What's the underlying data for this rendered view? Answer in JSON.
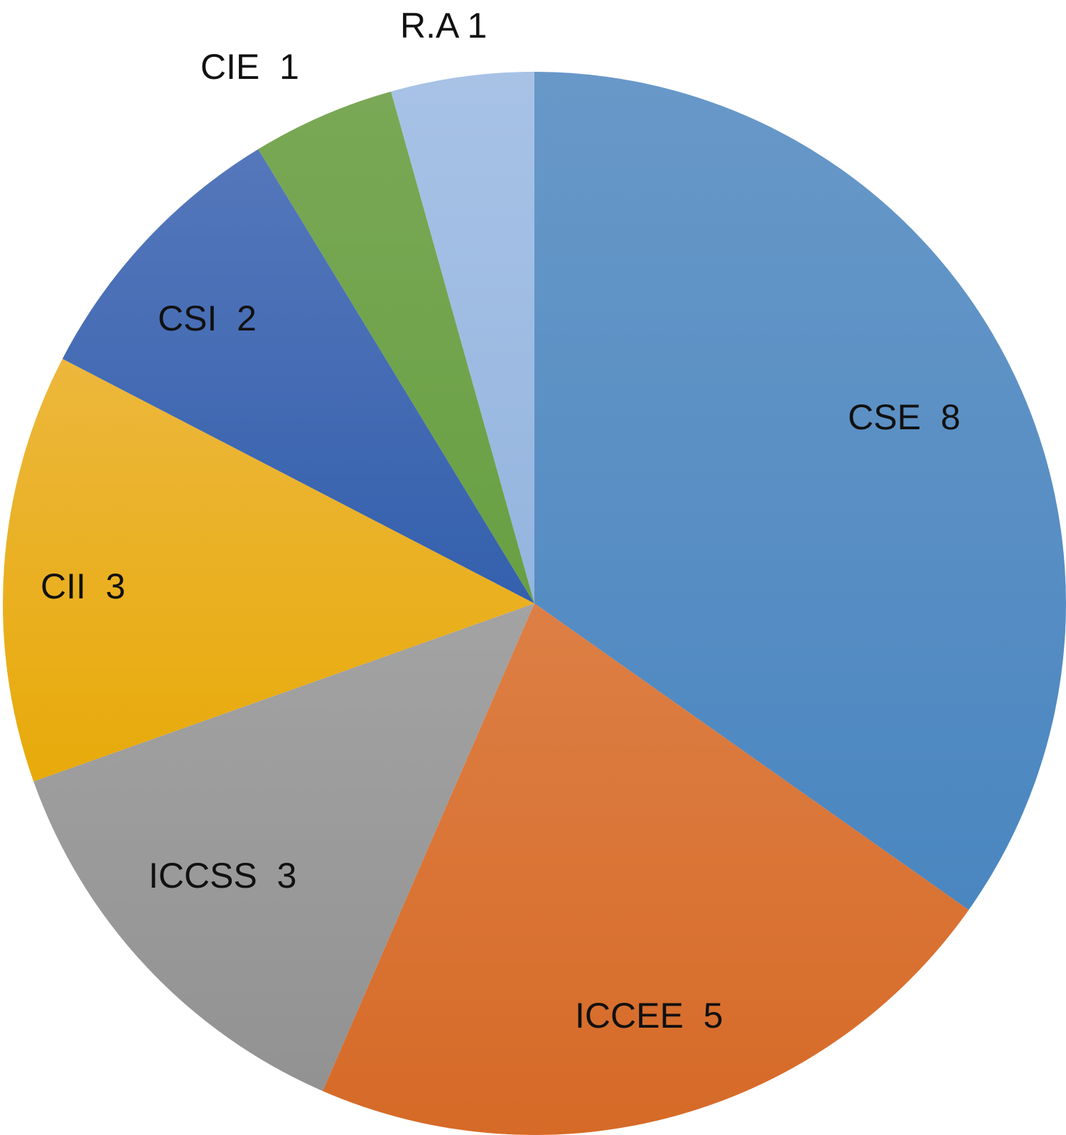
{
  "chart_data": {
    "type": "pie",
    "title": "",
    "start": "12 o'clock",
    "direction": "clockwise",
    "legend": "none",
    "slices": [
      {
        "label": "CSE",
        "value": 8,
        "data_label": "CSE  8",
        "color": "#4a86c0",
        "color_light": "#6898c8"
      },
      {
        "label": "ICCEE",
        "value": 5,
        "data_label": "ICCEE  5",
        "color": "#d66a27",
        "color_light": "#dd7f45"
      },
      {
        "label": "ICCSS",
        "value": 3,
        "data_label": "ICCSS  3",
        "color": "#929292",
        "color_light": "#a3a3a3"
      },
      {
        "label": "CII",
        "value": 3,
        "data_label": "CII  3",
        "color": "#e8aa0a",
        "color_light": "#ecb73c"
      },
      {
        "label": "CSI",
        "value": 2,
        "data_label": "CSI  2",
        "color": "#3460ad",
        "color_light": "#5577bb"
      },
      {
        "label": "CIE",
        "value": 1,
        "data_label": "CIE  1",
        "color": "#68a043",
        "color_light": "#7aa856"
      },
      {
        "label": "R.A",
        "value": 1,
        "data_label": "R.A 1",
        "color": "#94b5df",
        "color_light": "#a8c2e6"
      }
    ]
  }
}
